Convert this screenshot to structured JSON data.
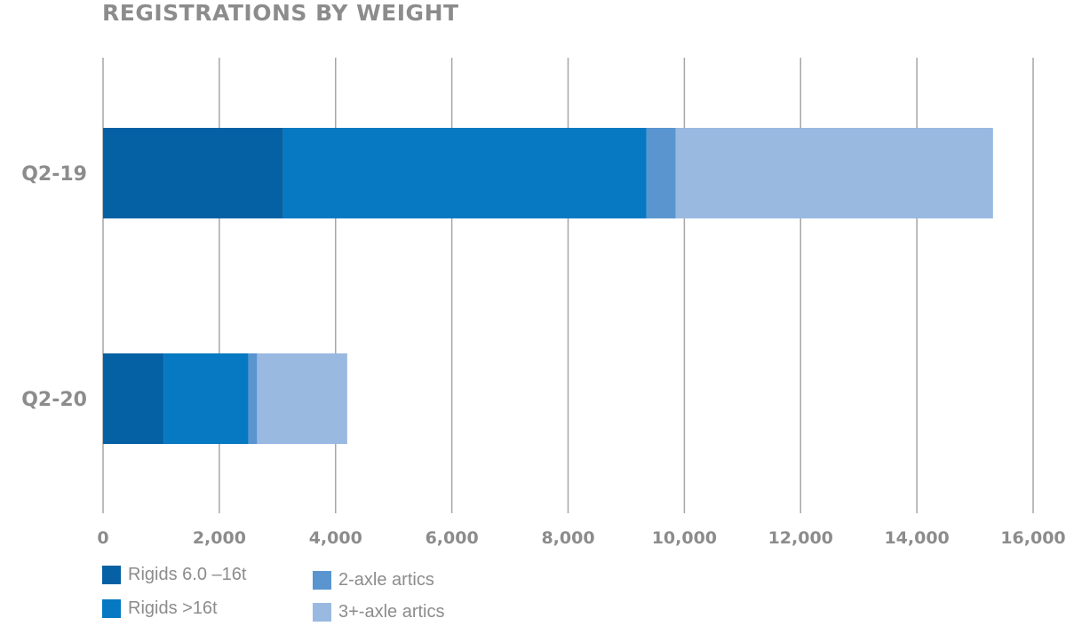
{
  "chart_data": {
    "type": "bar",
    "orientation": "horizontal",
    "stacked": true,
    "title": "REGISTRATIONS BY WEIGHT",
    "categories": [
      "Q2-19",
      "Q2-20"
    ],
    "series": [
      {
        "name": "Rigids 6.0 –16t",
        "color": "#0561a4",
        "values": [
          3100,
          1050
        ]
      },
      {
        "name": "Rigids >16t",
        "color": "#0679c2",
        "values": [
          6250,
          1450
        ]
      },
      {
        "name": "2-axle artics",
        "color": "#5a95d0",
        "values": [
          500,
          150
        ]
      },
      {
        "name": "3+-axle artics",
        "color": "#99b9e1",
        "values": [
          5460,
          1550
        ]
      }
    ],
    "xlim": [
      0,
      16000
    ],
    "xticks": [
      "0",
      "2,000",
      "4,000",
      "6,000",
      "8,000",
      "10,000",
      "12,000",
      "14,000",
      "16,000"
    ],
    "grid": true,
    "legend_position": "bottom-left"
  }
}
